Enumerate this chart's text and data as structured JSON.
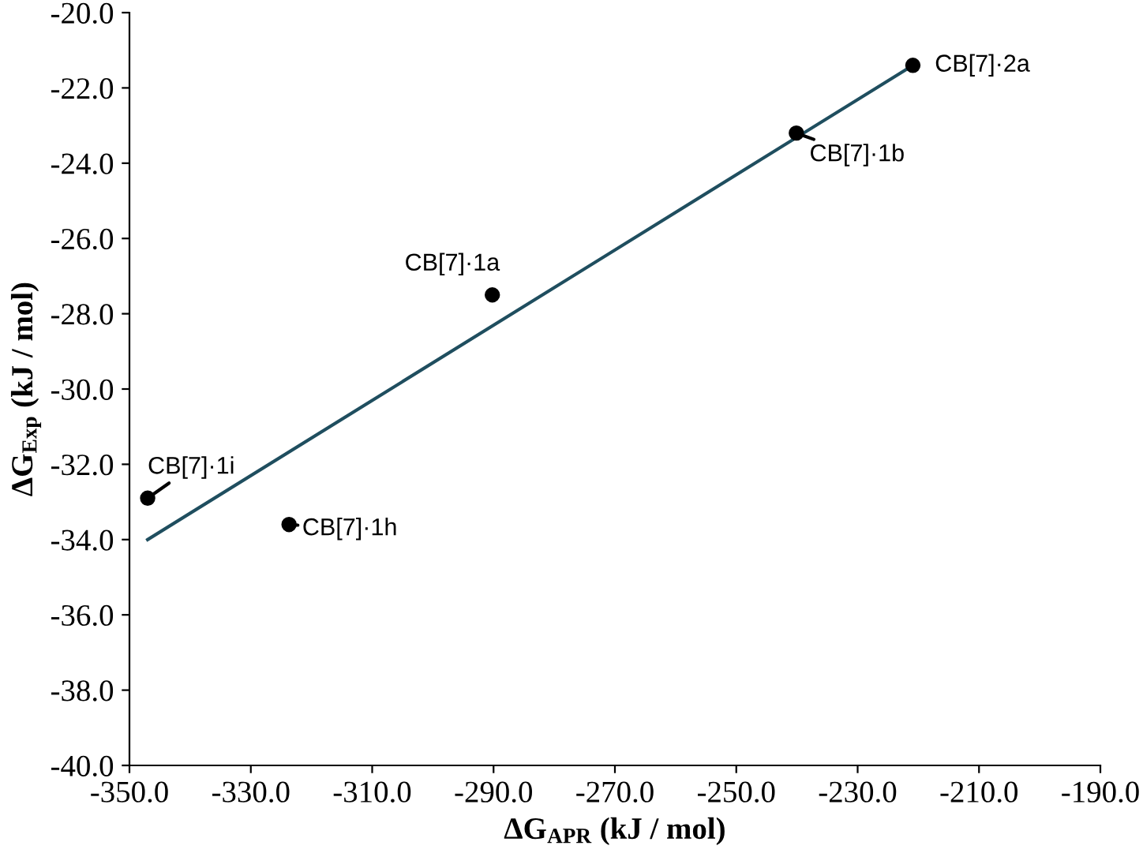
{
  "chart_data": {
    "type": "scatter",
    "xlabel": "ΔG$_{APR}$ (kJ / mol)",
    "ylabel": "ΔG$_{Exp}$ (kJ / mol)",
    "x": [
      -220.9,
      -240.1,
      -290.2,
      -347.0,
      -323.7
    ],
    "series": [
      {
        "color": "#000000",
        "values": [
          -21.4,
          -23.2,
          -27.5,
          -32.9,
          -33.6
        ],
        "marker": "circle"
      },
      {
        "type": "line",
        "color": "#1f4e5f",
        "x": [
          -347.0,
          -220.9
        ],
        "values": [
          -34.0,
          -21.4
        ],
        "marker": "none",
        "line_style": "solid"
      }
    ],
    "annotations": [
      {
        "text": "CB[7]·2a",
        "x": -220.9,
        "y": -21.4
      },
      {
        "text": "CB[7]·1b",
        "x": -240.1,
        "y": -23.2
      },
      {
        "text": "CB[7]·1a",
        "x": -290.2,
        "y": -27.5
      },
      {
        "text": "CB[7]·1i",
        "x": -347.0,
        "y": -32.9
      },
      {
        "text": "CB[7]·1h",
        "x": -323.7,
        "y": -33.6
      }
    ],
    "xlim": [
      -350,
      -190
    ],
    "xticks": [
      {
        "value": -350,
        "label": "-350.0"
      },
      {
        "value": -330,
        "label": "-330.0"
      },
      {
        "value": -310,
        "label": "-310.0"
      },
      {
        "value": -290,
        "label": "-290.0"
      },
      {
        "value": -270,
        "label": "-270.0"
      },
      {
        "value": -250,
        "label": "-250.0"
      },
      {
        "value": -230,
        "label": "-230.0"
      },
      {
        "value": -210,
        "label": "-210.0"
      },
      {
        "value": -190,
        "label": "-190.0"
      }
    ],
    "ylim": [
      -40,
      -20
    ],
    "yticks": [
      {
        "value": -40,
        "label": "-40.0"
      },
      {
        "value": -38,
        "label": "-38.0"
      },
      {
        "value": -36,
        "label": "-36.0"
      },
      {
        "value": -34,
        "label": "-34.0"
      },
      {
        "value": -32,
        "label": "-32.0"
      },
      {
        "value": -30,
        "label": "-30.0"
      },
      {
        "value": -28,
        "label": "-28.0"
      },
      {
        "value": -26,
        "label": "-26.0"
      },
      {
        "value": -24,
        "label": "-24.0"
      },
      {
        "value": -22,
        "label": "-22.0"
      },
      {
        "value": -20,
        "label": "-20.0"
      }
    ],
    "grid": false,
    "legend": false
  }
}
